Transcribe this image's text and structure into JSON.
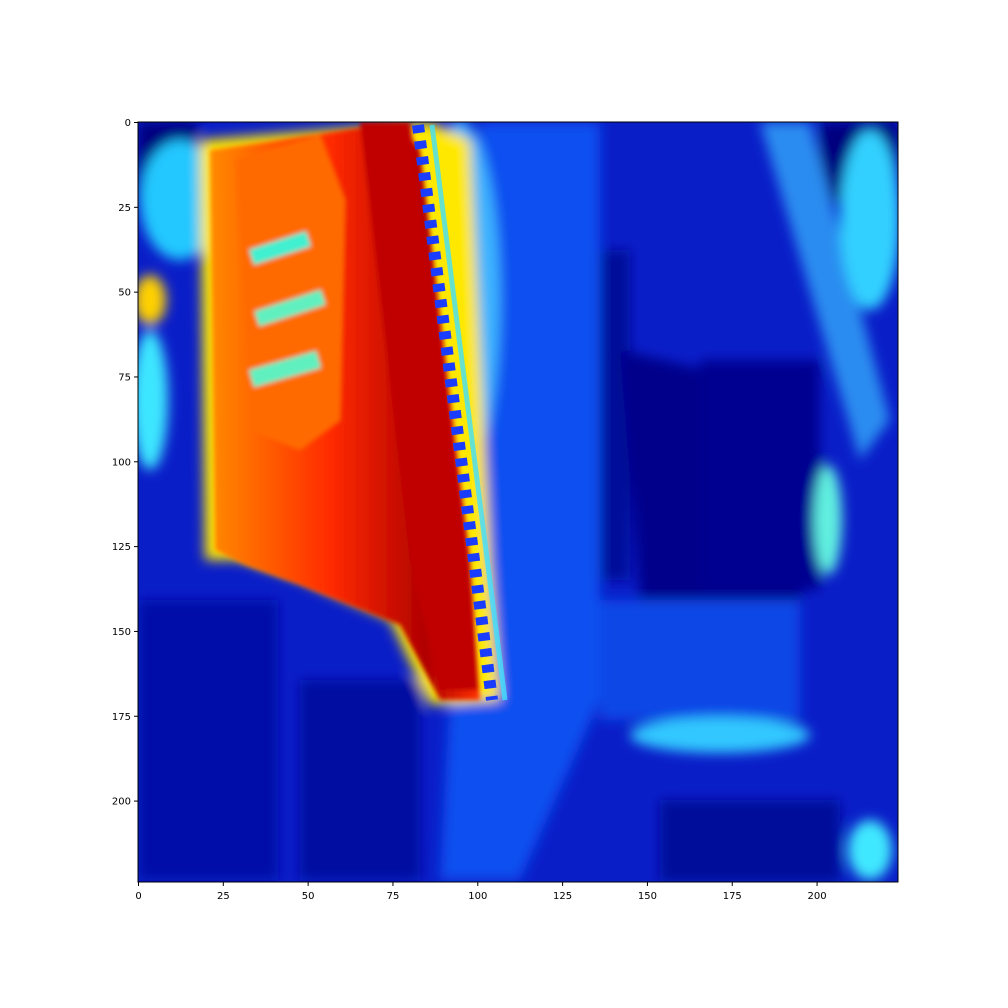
{
  "chart_data": {
    "type": "heatmap",
    "colormap": "jet",
    "title": "",
    "xlabel": "",
    "ylabel": "",
    "xlim": [
      0,
      224
    ],
    "ylim": [
      224,
      0
    ],
    "x_ticks": [
      0,
      25,
      50,
      75,
      100,
      125,
      150,
      175,
      200
    ],
    "y_ticks": [
      0,
      25,
      50,
      75,
      100,
      125,
      150,
      175,
      200
    ],
    "grid": false,
    "colors": {
      "low": "#00007f",
      "mid_low": "#0040ff",
      "mid": "#00e0ff",
      "mid_high": "#ffff00",
      "high": "#ff4000",
      "max": "#7f0000"
    }
  }
}
